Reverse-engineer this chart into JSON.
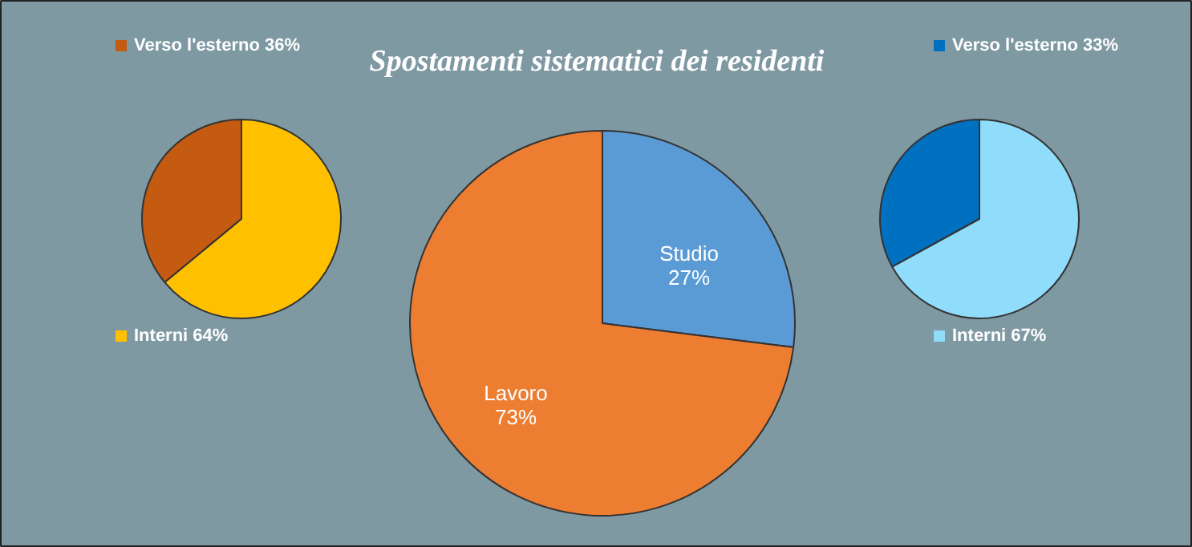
{
  "chart_data": [
    {
      "type": "pie",
      "categories": [
        "Verso l'esterno",
        "Interni"
      ],
      "values": [
        36,
        64
      ],
      "value_labels": [
        "36%",
        "64%"
      ],
      "colors": [
        "#c55a11",
        "#ffc000"
      ],
      "legend": "top"
    },
    {
      "type": "pie",
      "title": "Spostamenti sistematici dei residenti",
      "categories": [
        "Studio",
        "Lavoro"
      ],
      "values": [
        27,
        73
      ],
      "value_labels": [
        "27%",
        "73%"
      ],
      "colors": [
        "#5b9bd5",
        "#ed7d31"
      ]
    },
    {
      "type": "pie",
      "categories": [
        "Verso l'esterno",
        "Interni"
      ],
      "values": [
        33,
        67
      ],
      "value_labels": [
        "33%",
        "67%"
      ],
      "colors": [
        "#0070c0",
        "#8fdcfb"
      ],
      "legend": "top"
    }
  ]
}
